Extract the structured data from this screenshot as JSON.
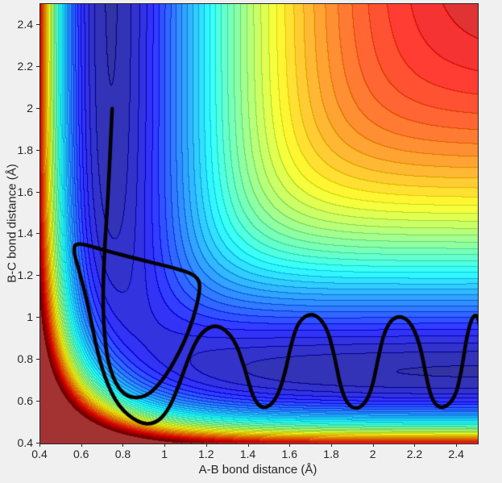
{
  "figure": {
    "background": "#f0f0f0",
    "axis_color": "#262626"
  },
  "chart_data": {
    "type": "heatmap",
    "subtype": "filled-contour-with-reaction-trajectory",
    "title": "",
    "xlabel": "A-B bond distance (Å)",
    "ylabel": "B-C bond distance (Å)",
    "xlim": [
      0.4,
      2.5
    ],
    "ylim": [
      0.4,
      2.5
    ],
    "grid": false,
    "legend": "none",
    "x_tick_values": [
      0.4,
      0.6,
      0.8,
      1,
      1.2,
      1.4,
      1.6,
      1.8,
      2,
      2.2,
      2.4
    ],
    "x_tick_labels": [
      "0.4",
      "0.6",
      "0.8",
      "1",
      "1.2",
      "1.4",
      "1.6",
      "1.8",
      "2",
      "2.2",
      "2.4"
    ],
    "y_tick_values": [
      0.4,
      0.6,
      0.8,
      1,
      1.2,
      1.4,
      1.6,
      1.8,
      2,
      2.2,
      2.4
    ],
    "y_tick_labels": [
      "0.4",
      "0.6",
      "0.8",
      "1",
      "1.2",
      "1.4",
      "1.6",
      "1.8",
      "2",
      "2.2",
      "2.4"
    ],
    "colormap": "jet",
    "color_scale": {
      "vmin": -1.02,
      "vmax": 0,
      "bands": 40,
      "face_alpha": 0.8
    },
    "surface_model": {
      "name": "LEPS collinear A-B-C potential energy surface",
      "D": 1,
      "r0": 0.742,
      "alpha": 1.942,
      "sato": 0.15
    },
    "trajectory": {
      "color": "#000000",
      "width": 4.5,
      "points": [
        [
          0.745,
          2.0
        ],
        [
          0.737,
          1.82
        ],
        [
          0.725,
          1.58
        ],
        [
          0.708,
          1.32
        ],
        [
          0.7,
          1.1
        ],
        [
          0.706,
          0.94
        ],
        [
          0.722,
          0.8
        ],
        [
          0.76,
          0.685
        ],
        [
          0.815,
          0.622
        ],
        [
          0.895,
          0.618
        ],
        [
          0.965,
          0.672
        ],
        [
          1.045,
          0.79
        ],
        [
          1.125,
          0.96
        ],
        [
          1.172,
          1.145
        ],
        [
          1.15,
          1.205
        ],
        [
          1.04,
          1.24
        ],
        [
          0.88,
          1.278
        ],
        [
          0.7,
          1.325
        ],
        [
          0.578,
          1.362
        ],
        [
          0.556,
          1.33
        ],
        [
          0.59,
          1.215
        ],
        [
          0.632,
          1.05
        ],
        [
          0.664,
          0.88
        ],
        [
          0.708,
          0.715
        ],
        [
          0.775,
          0.575
        ],
        [
          0.872,
          0.497
        ],
        [
          0.95,
          0.492
        ],
        [
          1.012,
          0.553
        ],
        [
          1.065,
          0.675
        ],
        [
          1.115,
          0.82
        ],
        [
          1.172,
          0.935
        ],
        [
          1.25,
          0.972
        ],
        [
          1.33,
          0.905
        ],
        [
          1.382,
          0.76
        ],
        [
          1.42,
          0.618
        ],
        [
          1.468,
          0.562
        ],
        [
          1.528,
          0.6
        ],
        [
          1.572,
          0.722
        ],
        [
          1.602,
          0.868
        ],
        [
          1.638,
          0.985
        ],
        [
          1.705,
          1.028
        ],
        [
          1.772,
          0.968
        ],
        [
          1.812,
          0.822
        ],
        [
          1.842,
          0.662
        ],
        [
          1.882,
          0.572
        ],
        [
          1.942,
          0.568
        ],
        [
          1.99,
          0.65
        ],
        [
          2.02,
          0.8
        ],
        [
          2.052,
          0.94
        ],
        [
          2.102,
          1.012
        ],
        [
          2.17,
          0.995
        ],
        [
          2.222,
          0.878
        ],
        [
          2.252,
          0.718
        ],
        [
          2.282,
          0.598
        ],
        [
          2.332,
          0.562
        ],
        [
          2.392,
          0.618
        ],
        [
          2.422,
          0.748
        ],
        [
          2.445,
          0.9
        ],
        [
          2.47,
          1.0
        ],
        [
          2.498,
          1.02
        ],
        [
          2.515,
          0.93
        ],
        [
          2.522,
          0.83
        ]
      ]
    }
  }
}
